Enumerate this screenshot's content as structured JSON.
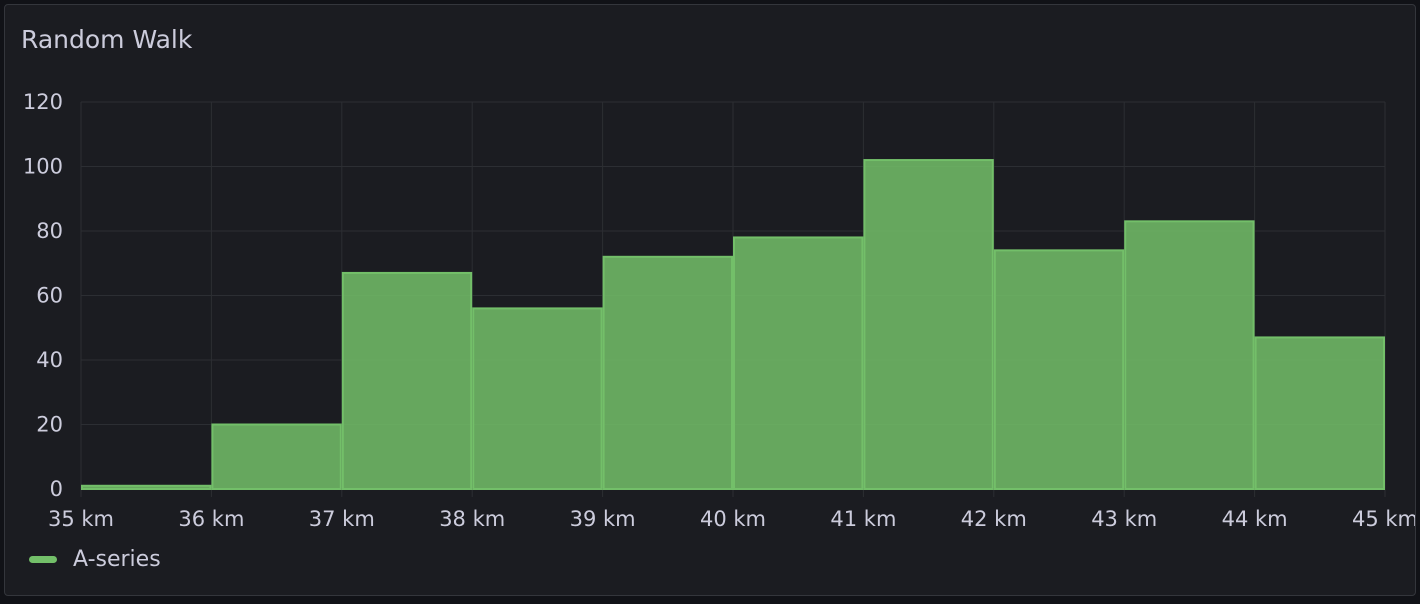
{
  "panel": {
    "title": "Random Walk"
  },
  "chart_data": {
    "type": "bar",
    "title": "Random Walk",
    "bins": [
      [
        35,
        36
      ],
      [
        36,
        37
      ],
      [
        37,
        38
      ],
      [
        38,
        39
      ],
      [
        39,
        40
      ],
      [
        40,
        41
      ],
      [
        41,
        42
      ],
      [
        42,
        43
      ],
      [
        43,
        44
      ],
      [
        44,
        45
      ]
    ],
    "series": [
      {
        "name": "A-series",
        "values": [
          1,
          20,
          67,
          56,
          72,
          78,
          102,
          74,
          83,
          47
        ],
        "color": "#73bf69"
      }
    ],
    "xlim": [
      35,
      45
    ],
    "ylim": [
      0,
      120
    ],
    "xticks": [
      "35 km",
      "36 km",
      "37 km",
      "38 km",
      "39 km",
      "40 km",
      "41 km",
      "42 km",
      "43 km",
      "44 km",
      "45 km"
    ],
    "yticks": [
      "0",
      "20",
      "40",
      "60",
      "80",
      "100",
      "120"
    ],
    "grid": true,
    "legend": "bottom-left"
  },
  "legend": {
    "label": "A-series",
    "color": "#73bf69"
  }
}
